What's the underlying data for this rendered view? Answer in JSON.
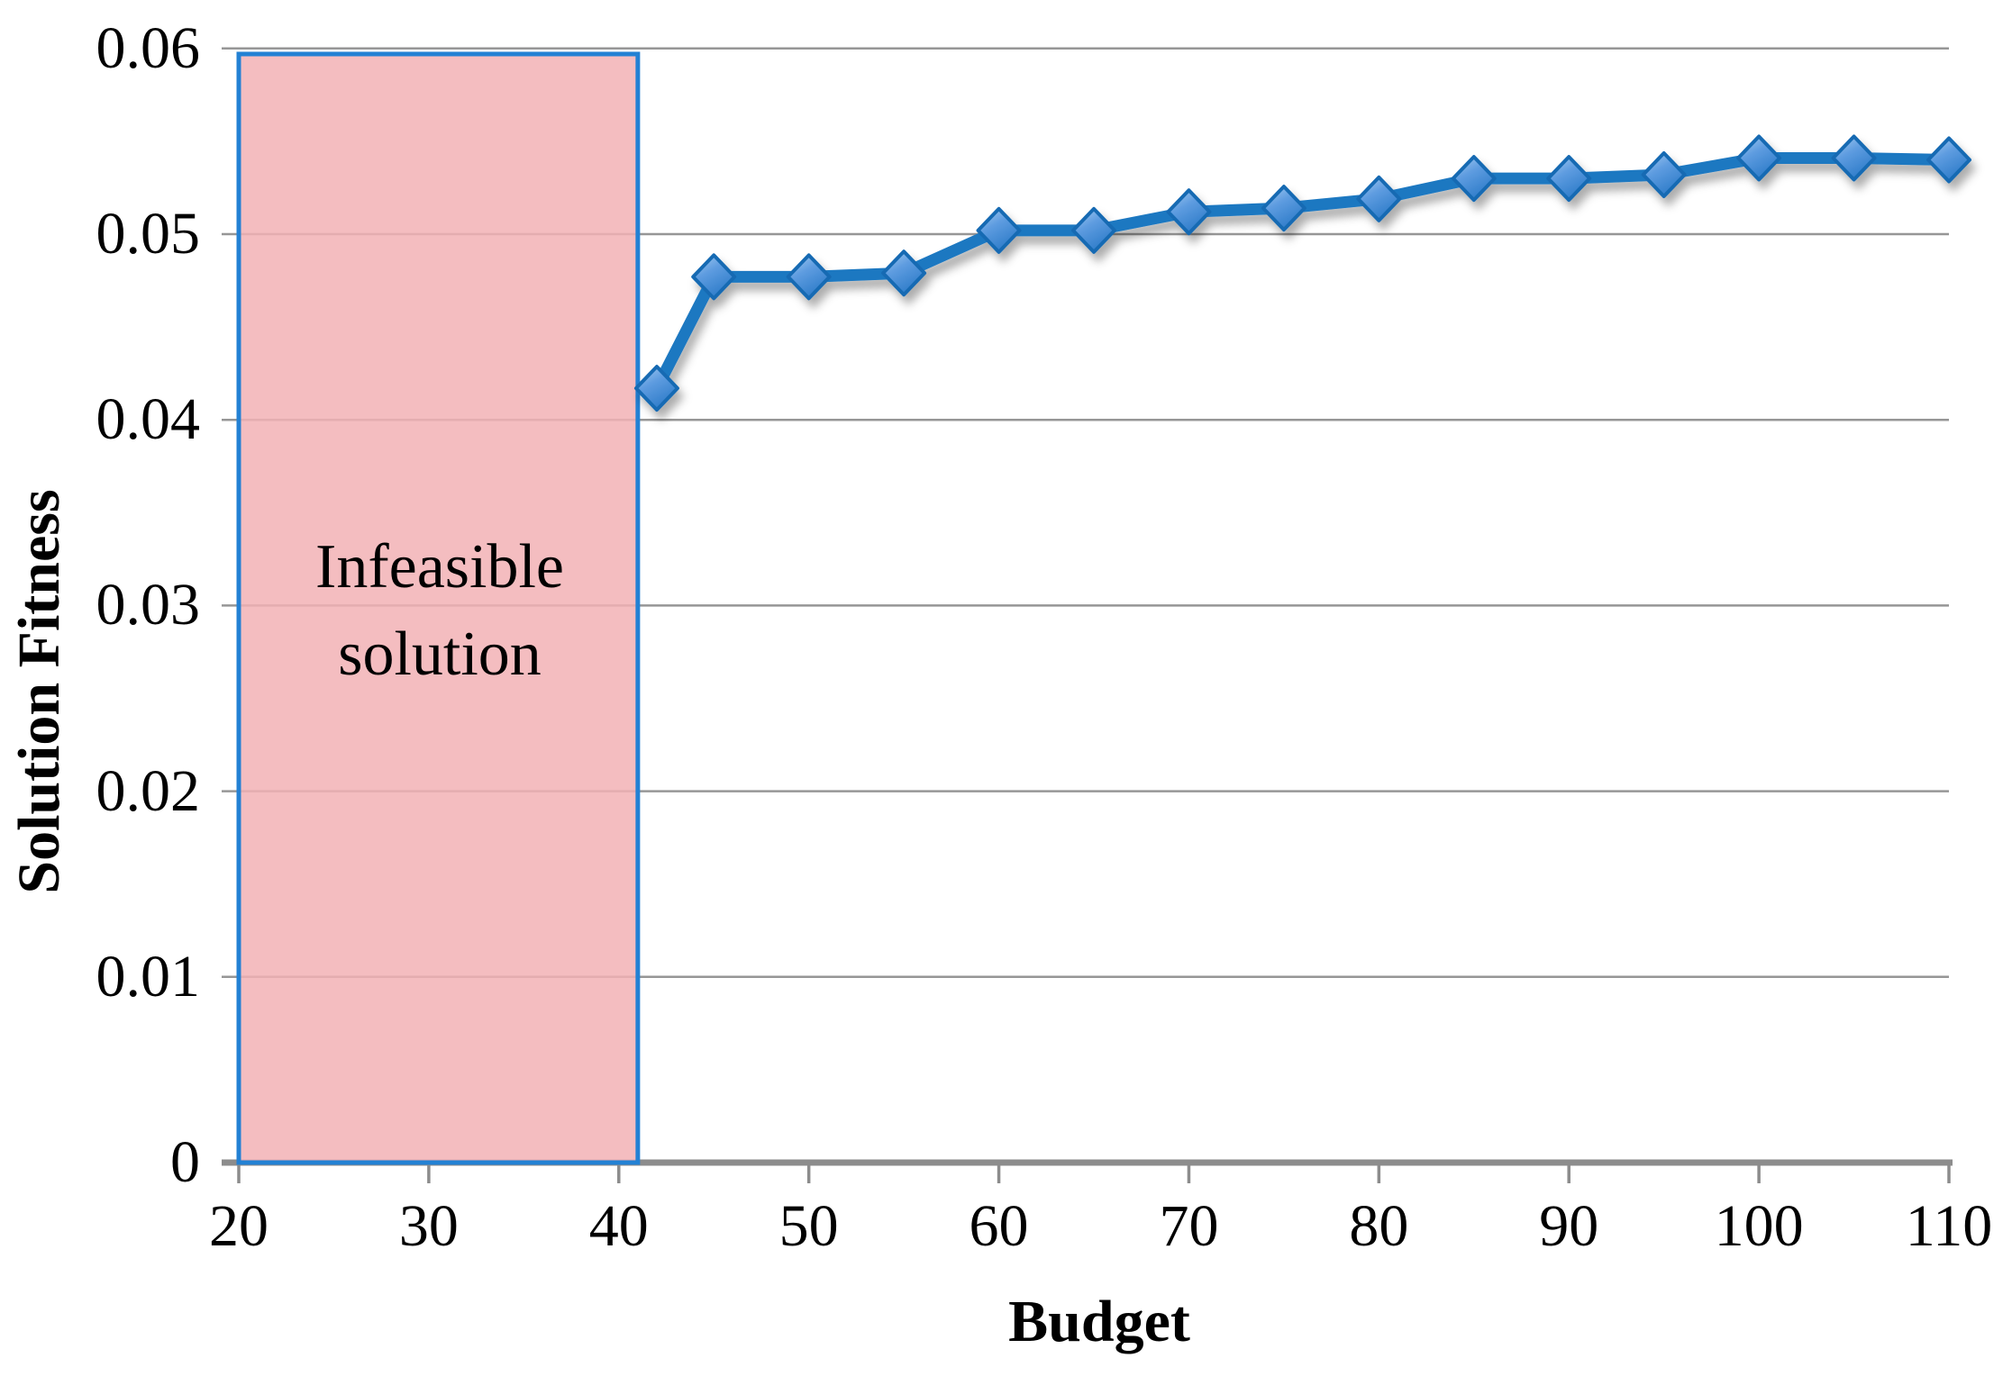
{
  "chart_data": {
    "type": "line",
    "title": "",
    "xlabel": "Budget",
    "ylabel": "Solution Fitness",
    "xlim": [
      20,
      110
    ],
    "ylim": [
      0,
      0.06
    ],
    "xticks": [
      20,
      30,
      40,
      50,
      60,
      70,
      80,
      90,
      100,
      110
    ],
    "xtick_labels": [
      "20",
      "30",
      "40",
      "50",
      "60",
      "70",
      "80",
      "90",
      "100",
      "110"
    ],
    "yticks": [
      0,
      0.01,
      0.02,
      0.03,
      0.04,
      0.05,
      0.06
    ],
    "ytick_labels": [
      "0",
      "0.01",
      "0.02",
      "0.03",
      "0.04",
      "0.05",
      "0.06"
    ],
    "grid": "horizontal-only",
    "legend": "none",
    "series": [
      {
        "name": "Solution Fitness",
        "marker": "diamond",
        "line_color": "#1D78C1",
        "marker_border_color": "#176BB3",
        "x": [
          42,
          45,
          50,
          55,
          60,
          65,
          70,
          75,
          80,
          85,
          90,
          95,
          100,
          105,
          110
        ],
        "y": [
          0.0417,
          0.0477,
          0.0477,
          0.0479,
          0.0502,
          0.0502,
          0.0512,
          0.0514,
          0.0519,
          0.053,
          0.053,
          0.0532,
          0.0541,
          0.0541,
          0.054
        ]
      }
    ],
    "annotation_region": {
      "label": "Infeasible solution",
      "label_lines": [
        "Infeasible",
        "solution"
      ],
      "x_start": 20,
      "x_end": 41,
      "y_start": 0,
      "y_end": 0.0597,
      "fill": "#F2B2B5",
      "border": "#2381D4"
    },
    "colors": {
      "gridline": "#969696",
      "axis": "#8C8C8C",
      "text": "#000000"
    }
  }
}
